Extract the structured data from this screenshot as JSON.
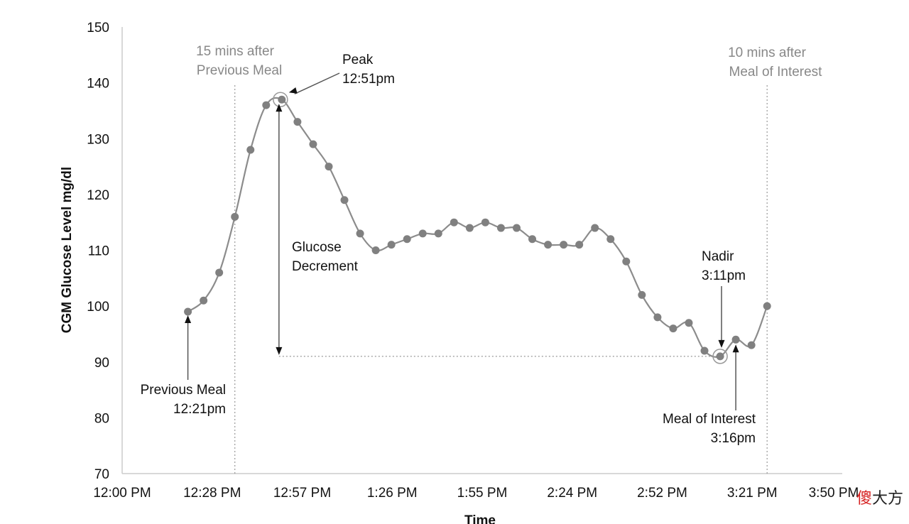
{
  "chart_data": {
    "type": "line",
    "title": "",
    "xlabel": "Time",
    "ylabel": "CGM Glucose Level mg/dl",
    "ylim": [
      70,
      150
    ],
    "y_ticks": [
      70,
      80,
      90,
      100,
      110,
      120,
      130,
      140,
      150
    ],
    "xlim_minutes_after_noon": [
      0,
      230
    ],
    "x_ticks": [
      "12:00 PM",
      "12:28 PM",
      "12:57 PM",
      "1:26 PM",
      "1:55 PM",
      "2:24 PM",
      "2:52 PM",
      "3:21 PM",
      "3:50 PM"
    ],
    "series": [
      {
        "name": "",
        "x": [
          "12:21 PM",
          "12:26 PM",
          "12:31 PM",
          "12:36 PM",
          "12:41 PM",
          "12:46 PM",
          "12:51 PM",
          "12:56 PM",
          "13:01 PM",
          "13:06 PM",
          "13:11 PM",
          "13:16 PM",
          "13:21 PM",
          "13:26 PM",
          "13:31 PM",
          "13:36 PM",
          "13:41 PM",
          "13:46 PM",
          "13:51 PM",
          "13:56 PM",
          "14:01 PM",
          "14:06 PM",
          "14:11 PM",
          "14:16 PM",
          "14:21 PM",
          "14:26 PM",
          "14:31 PM",
          "14:36 PM",
          "14:41 PM",
          "14:46 PM",
          "14:51 PM",
          "14:56 PM",
          "15:01 PM",
          "15:06 PM",
          "15:11 PM",
          "15:16 PM",
          "15:21 PM",
          "15:26 PM"
        ],
        "y": [
          99,
          101,
          106,
          116,
          128,
          136,
          137,
          133,
          129,
          125,
          119,
          113,
          110,
          111,
          112,
          113,
          113,
          115,
          114,
          115,
          114,
          114,
          112,
          111,
          111,
          111,
          114,
          112,
          108,
          102,
          98,
          96,
          97,
          92,
          91,
          94,
          93,
          100
        ]
      }
    ],
    "annotations": {
      "prev_meal_line": {
        "line1": "15 mins after",
        "line2": "Previous Meal"
      },
      "meal_line": {
        "line1": "10 mins after",
        "line2": "Meal of Interest"
      },
      "peak": {
        "line1": "Peak",
        "line2": "12:51pm"
      },
      "decrement": {
        "line1": "Glucose",
        "line2": "Decrement"
      },
      "nadir": {
        "line1": "Nadir",
        "line2": "3:11pm"
      },
      "previous_meal": {
        "line1": "Previous Meal",
        "line2": "12:21pm"
      },
      "meal_of_interest": {
        "line1": "Meal of Interest",
        "line2": "3:16pm"
      }
    },
    "series_color": "#888888",
    "marker_color": "#808080",
    "line_color": "#8c8c8c",
    "grid": false
  },
  "watermark": {
    "char1": "傻",
    "char2": "大方"
  }
}
